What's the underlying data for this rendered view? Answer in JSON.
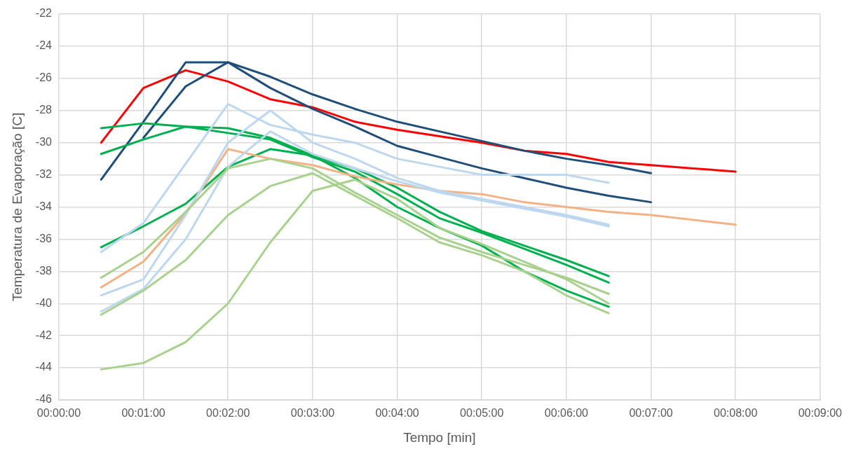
{
  "chart_data": {
    "type": "line",
    "xlabel": "Tempo [min]",
    "ylabel": "Temperatura de Evaporação [C]",
    "xlim": [
      0,
      9
    ],
    "xticks": [
      {
        "value": 0,
        "label": "00:00:00"
      },
      {
        "value": 1,
        "label": "00:01:00"
      },
      {
        "value": 2,
        "label": "00:02:00"
      },
      {
        "value": 3,
        "label": "00:03:00"
      },
      {
        "value": 4,
        "label": "00:04:00"
      },
      {
        "value": 5,
        "label": "00:05:00"
      },
      {
        "value": 6,
        "label": "00:06:00"
      },
      {
        "value": 7,
        "label": "00:07:00"
      },
      {
        "value": 8,
        "label": "00:08:00"
      },
      {
        "value": 9,
        "label": "00:09:00"
      }
    ],
    "ylim": [
      -46,
      -22
    ],
    "yticks": [
      -46,
      -44,
      -42,
      -40,
      -38,
      -36,
      -34,
      -32,
      -30,
      -28,
      -26,
      -24,
      -22
    ],
    "grid": true,
    "legend": false,
    "marker": "none",
    "line_style": "solid",
    "series": [
      {
        "color": "#a9d18e",
        "x": [
          0.5,
          1,
          1.5,
          2,
          2.5,
          3,
          3.5,
          4,
          4.5,
          5,
          5.5,
          6,
          6.5
        ],
        "values": [
          -44.1,
          -43.7,
          -42.4,
          -40,
          -36.2,
          -33,
          -32.3,
          -33.5,
          -35.3,
          -36.3,
          -37.4,
          -38.5,
          -40
        ]
      },
      {
        "color": "#a9d18e",
        "x": [
          0.5,
          1,
          1.5,
          2,
          2.5,
          3,
          3.5,
          4,
          4.5,
          5,
          5.5,
          6,
          6.5
        ],
        "values": [
          -40.7,
          -39.2,
          -37.3,
          -34.5,
          -32.7,
          -31.9,
          -33.3,
          -34.7,
          -36.2,
          -37,
          -38,
          -39.5,
          -40.6
        ]
      },
      {
        "color": "#a9d18e",
        "x": [
          0.5,
          1,
          1.5,
          2,
          2.5,
          3,
          3.5,
          4,
          4.5,
          5,
          5.5,
          6,
          6.5
        ],
        "values": [
          -38.4,
          -36.8,
          -34.3,
          -31.6,
          -31,
          -31.6,
          -33.1,
          -34.5,
          -35.9,
          -36.8,
          -37.6,
          -38.4,
          -39.4
        ]
      },
      {
        "color": "#bdd7ee",
        "x": [
          0.5,
          1,
          1.5,
          2,
          2.5,
          3,
          3.5,
          4,
          4.5,
          5,
          5.5,
          6,
          6.5
        ],
        "values": [
          -40.5,
          -39.1,
          -36,
          -31.5,
          -29.3,
          -30.7,
          -31.6,
          -32.4,
          -33.1,
          -33.6,
          -34.1,
          -34.6,
          -35.2
        ]
      },
      {
        "color": "#bdd7ee",
        "x": [
          0.5,
          1,
          1.5,
          2,
          2.5,
          3,
          3.5,
          4,
          4.5,
          5,
          5.5,
          6,
          6.5
        ],
        "values": [
          -39.5,
          -38.5,
          -34.5,
          -30,
          -28,
          -30,
          -31,
          -32.2,
          -33,
          -33.5,
          -34,
          -34.5,
          -35.1
        ]
      },
      {
        "color": "#bdd7ee",
        "x": [
          0.5,
          1,
          1.5,
          2,
          2.5,
          3,
          3.5,
          4,
          4.5,
          5,
          5.5,
          6,
          6.5
        ],
        "values": [
          -36.8,
          -35,
          -31.3,
          -27.6,
          -28.9,
          -29.5,
          -30,
          -31,
          -31.5,
          -32,
          -32,
          -32,
          -32.5
        ]
      },
      {
        "color": "#f4b183",
        "x": [
          0.5,
          1,
          1.5,
          2,
          2.5,
          3,
          3.5,
          4,
          4.5,
          5,
          5.5,
          6,
          6.5,
          7,
          7.5,
          8
        ],
        "values": [
          -39,
          -37.4,
          -34.4,
          -30.4,
          -31,
          -31.4,
          -32.1,
          -32.6,
          -33,
          -33.2,
          -33.7,
          -34,
          -34.3,
          -34.5,
          -34.8,
          -35.1
        ]
      },
      {
        "color": "#00b050",
        "x": [
          0.5,
          1,
          1.5,
          2,
          2.5,
          3,
          3.5,
          4,
          4.5,
          5,
          5.5,
          6,
          6.5
        ],
        "values": [
          -36.5,
          -35.2,
          -33.8,
          -31.5,
          -30.4,
          -30.8,
          -32.2,
          -34,
          -35.3,
          -36.4,
          -38,
          -39.2,
          -40.2
        ]
      },
      {
        "color": "#00b050",
        "x": [
          0.5,
          1,
          1.5,
          2,
          2.5,
          3,
          3.5,
          4,
          4.5,
          5,
          5.5,
          6,
          6.5
        ],
        "values": [
          -30.7,
          -29.8,
          -29,
          -29.4,
          -29.8,
          -30.9,
          -31.8,
          -33.2,
          -34.7,
          -35.6,
          -36.6,
          -37.6,
          -38.7
        ]
      },
      {
        "color": "#00b050",
        "x": [
          0.5,
          1,
          1.5,
          2,
          2.5,
          3,
          3.5,
          4,
          4.5,
          5,
          5.5,
          6,
          6.5
        ],
        "values": [
          -29.1,
          -28.8,
          -29,
          -29.1,
          -29.7,
          -30.8,
          -31.6,
          -32.8,
          -34.3,
          -35.5,
          -36.4,
          -37.3,
          -38.3
        ]
      },
      {
        "color": "#1f4e79",
        "x": [
          0.5,
          1,
          1.5,
          2,
          2.5,
          3,
          3.5,
          4,
          4.5,
          5,
          5.5,
          6,
          6.5,
          7
        ],
        "values": [
          -32.3,
          -28.7,
          -25,
          -25,
          -26.6,
          -27.9,
          -29,
          -30.2,
          -30.9,
          -31.6,
          -32.2,
          -32.8,
          -33.3,
          -33.7
        ]
      },
      {
        "color": "#1f4e79",
        "x": [
          1,
          1.5,
          2,
          2.5,
          3,
          3.5,
          4,
          4.5,
          5,
          5.5,
          6,
          6.5,
          7
        ],
        "values": [
          -29.7,
          -26.5,
          -25,
          -25.9,
          -27,
          -27.9,
          -28.7,
          -29.3,
          -29.9,
          -30.5,
          -31,
          -31.4,
          -31.9
        ]
      },
      {
        "color": "#ff0000",
        "x": [
          0.5,
          1,
          1.5,
          2,
          2.5,
          3,
          3.5,
          4,
          4.5,
          5,
          5.5,
          6,
          6.5,
          7,
          7.5,
          8
        ],
        "values": [
          -30,
          -26.6,
          -25.5,
          -26.2,
          -27.3,
          -27.8,
          -28.7,
          -29.2,
          -29.6,
          -30,
          -30.5,
          -30.7,
          -31.2,
          -31.4,
          -31.6,
          -31.8
        ]
      }
    ]
  }
}
